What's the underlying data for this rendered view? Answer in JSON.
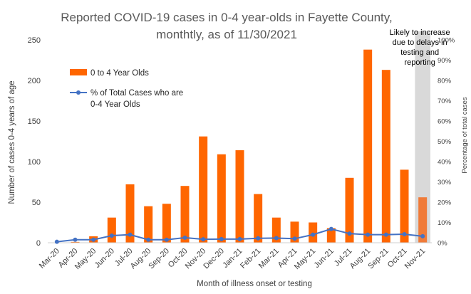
{
  "chart_data": {
    "type": "bar",
    "title_lines": [
      "Reported COVID-19 cases in 0-4 year-olds in Fayette County,",
      "monthtly, as of 11/30/2021"
    ],
    "xlabel": "Month of illness onset or testing",
    "ylabel": "Number of cases 0-4 years of age",
    "y2label": "Percentage of total cases",
    "ylim": [
      0,
      250
    ],
    "y2lim": [
      0,
      1
    ],
    "yticks": [
      "0",
      "50",
      "100",
      "150",
      "200",
      "250"
    ],
    "y2ticks": [
      "0%",
      "10%",
      "20%",
      "30%",
      "40%",
      "50%",
      "60%",
      "70%",
      "80%",
      "90%",
      "100%"
    ],
    "categories": [
      "Mar-20",
      "Apr-20",
      "May-20",
      "Jun-20",
      "Jul-20",
      "Aug-20",
      "Sep-20",
      "Oct-20",
      "Nov-20",
      "Dec-20",
      "Jan-21",
      "Feb-21",
      "Mar-21",
      "Apr-21",
      "May-21",
      "Jun-21",
      "Jul-21",
      "Aug-21",
      "Sep-21",
      "Oct-21",
      "Nov-21"
    ],
    "series": [
      {
        "name": "0 to 4 Year Olds",
        "kind": "bar",
        "axis": "left",
        "values": [
          0,
          1,
          8,
          31,
          72,
          45,
          48,
          70,
          131,
          109,
          114,
          60,
          31,
          26,
          25,
          18,
          80,
          238,
          213,
          90,
          56
        ]
      },
      {
        "name_lines": [
          "% of Total Cases who are",
          "0-4 Year Olds"
        ],
        "kind": "line",
        "axis": "right",
        "values": [
          0.005,
          0.015,
          0.015,
          0.035,
          0.04,
          0.015,
          0.015,
          0.025,
          0.017,
          0.018,
          0.018,
          0.022,
          0.023,
          0.02,
          0.04,
          0.068,
          0.045,
          0.04,
          0.04,
          0.042,
          0.032
        ]
      }
    ],
    "highlight": {
      "category": "Nov-21",
      "note_lines": [
        "Likely to increase",
        "due to delays in",
        "testing and",
        "reporting"
      ]
    },
    "colors": {
      "bar": "#FF6600",
      "bar_highlight": "#F07B39",
      "line": "#4472C4",
      "shade": "#D9D9D9"
    },
    "legend_position": "top-left",
    "grid": false
  }
}
